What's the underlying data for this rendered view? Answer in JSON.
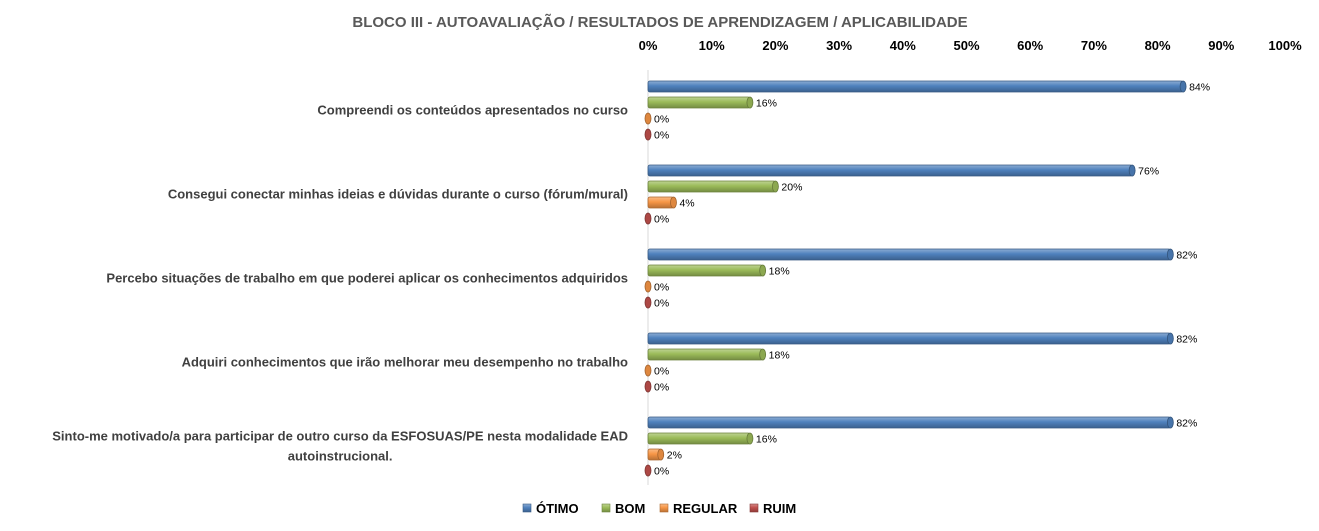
{
  "chart_data": {
    "type": "bar",
    "orientation": "horizontal",
    "title": "BLOCO III - AUTOAVALIAÇÃO / RESULTADOS DE APRENDIZAGEM / APLICABILIDADE",
    "xlim": [
      0,
      100
    ],
    "x_ticks": [
      "0%",
      "10%",
      "20%",
      "30%",
      "40%",
      "50%",
      "60%",
      "70%",
      "80%",
      "90%",
      "100%"
    ],
    "x_axis_position": "top",
    "grid": false,
    "legend_position": "bottom",
    "categories": [
      [
        "Compreendi os conteúdos apresentados no curso"
      ],
      [
        "Consegui conectar minhas ideias e dúvidas durante o curso (fórum/mural)"
      ],
      [
        "Percebo situações de trabalho em que poderei aplicar os conhecimentos adquiridos"
      ],
      [
        "Adquiri conhecimentos que irão melhorar meu desempenho no trabalho"
      ],
      [
        "Sinto-me motivado/a para participar de outro curso da ESFOSUAS/PE nesta modalidade EAD",
        "autoinstrucional."
      ]
    ],
    "series": [
      {
        "name": "ÓTIMO",
        "color": "#4F81BD",
        "values": [
          84,
          76,
          82,
          82,
          82
        ],
        "labels": [
          "84%",
          "76%",
          "82%",
          "82%",
          "82%"
        ]
      },
      {
        "name": "BOM",
        "color": "#9BBB59",
        "values": [
          16,
          20,
          18,
          18,
          16
        ],
        "labels": [
          "16%",
          "20%",
          "18%",
          "18%",
          "16%"
        ]
      },
      {
        "name": "REGULAR",
        "color": "#F79646",
        "values": [
          0,
          4,
          0,
          0,
          2
        ],
        "labels": [
          "0%",
          "4%",
          "0%",
          "0%",
          "2%"
        ]
      },
      {
        "name": "RUIM",
        "color": "#C0504D",
        "values": [
          0,
          0,
          0,
          0,
          0
        ],
        "labels": [
          "0%",
          "0%",
          "0%",
          "0%",
          "0%"
        ]
      }
    ]
  }
}
